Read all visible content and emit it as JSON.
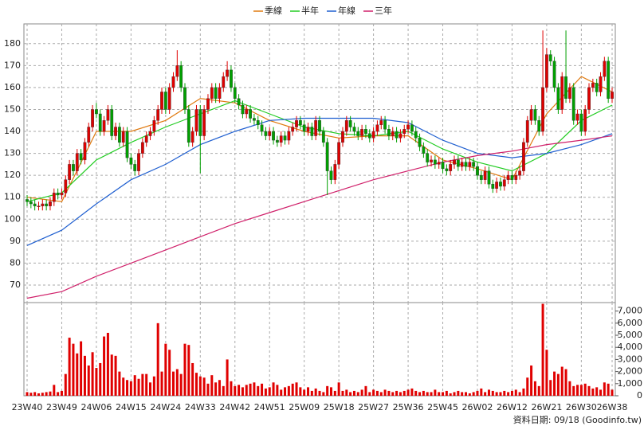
{
  "chart_data": {
    "type": "candlestick",
    "categories": [
      "23W40",
      null,
      null,
      null,
      null,
      null,
      null,
      null,
      null,
      "23W49",
      null,
      null,
      null,
      null,
      null,
      null,
      null,
      null,
      "24W06",
      null,
      null,
      null,
      null,
      null,
      null,
      null,
      null,
      "24W15",
      null,
      null,
      null,
      null,
      null,
      null,
      null,
      null,
      "24W24",
      null,
      null,
      null,
      null,
      null,
      null,
      null,
      null,
      "24W33",
      null,
      null,
      null,
      null,
      null,
      null,
      null,
      null,
      "24W42",
      null,
      null,
      null,
      null,
      null,
      null,
      null,
      null,
      "24W51",
      null,
      null,
      null,
      null,
      null,
      null,
      null,
      null,
      "25W09",
      null,
      null,
      null,
      null,
      null,
      null,
      null,
      null,
      "25W18",
      null,
      null,
      null,
      null,
      null,
      null,
      null,
      null,
      "25W27",
      null,
      null,
      null,
      null,
      null,
      null,
      null,
      null,
      "25W36",
      null,
      null,
      null,
      null,
      null,
      null,
      null,
      null,
      "25W45",
      null,
      null,
      null,
      null,
      null,
      null,
      null,
      null,
      "26W02",
      null,
      null,
      null,
      null,
      null,
      null,
      null,
      null,
      "26W12",
      null,
      null,
      null,
      null,
      null,
      null,
      null,
      null,
      "26W21",
      null,
      null,
      null,
      null,
      null,
      null,
      null,
      null,
      "26W30",
      null,
      null,
      null,
      null,
      null,
      null,
      null,
      "26W38"
    ],
    "open": [
      109,
      108,
      107,
      106,
      106,
      107,
      106,
      108,
      112,
      111,
      112,
      118,
      125,
      122,
      130,
      127,
      135,
      142,
      150,
      148,
      140,
      145,
      150,
      138,
      142,
      135,
      140,
      128,
      125,
      122,
      130,
      135,
      138,
      140,
      145,
      150,
      158,
      150,
      160,
      165,
      170,
      160,
      150,
      135,
      140,
      150,
      138,
      150,
      155,
      160,
      155,
      160,
      165,
      168,
      160,
      155,
      152,
      148,
      150,
      146,
      145,
      143,
      140,
      138,
      140,
      136,
      135,
      138,
      136,
      140,
      142,
      145,
      143,
      140,
      142,
      138,
      145,
      140,
      135,
      122,
      118,
      125,
      135,
      140,
      145,
      142,
      140,
      138,
      141,
      139,
      137,
      140,
      143,
      145,
      141,
      138,
      140,
      137,
      139,
      141,
      143,
      140,
      137,
      133,
      130,
      126,
      127,
      125,
      126,
      123,
      122,
      125,
      127,
      124,
      126,
      124,
      126,
      124,
      120,
      118,
      122,
      116,
      114,
      117,
      115,
      118,
      120,
      118,
      120,
      122,
      135,
      145,
      150,
      145,
      140,
      160,
      175,
      172,
      160,
      150,
      165,
      155,
      160,
      145,
      148,
      140,
      150,
      160,
      162,
      158,
      165,
      172,
      155
    ],
    "high": [
      111,
      110,
      109,
      108,
      109,
      109,
      110,
      114,
      114,
      114,
      120,
      127,
      127,
      132,
      132,
      137,
      144,
      152,
      153,
      150,
      147,
      152,
      152,
      144,
      144,
      142,
      142,
      130,
      127,
      132,
      137,
      140,
      142,
      147,
      152,
      160,
      160,
      162,
      167,
      177,
      172,
      162,
      152,
      142,
      152,
      152,
      152,
      157,
      162,
      162,
      162,
      167,
      172,
      170,
      162,
      157,
      154,
      152,
      152,
      148,
      147,
      145,
      142,
      142,
      142,
      138,
      140,
      140,
      142,
      144,
      147,
      147,
      145,
      144,
      144,
      147,
      147,
      142,
      137,
      124,
      127,
      137,
      142,
      147,
      147,
      144,
      142,
      143,
      143,
      141,
      142,
      145,
      147,
      147,
      143,
      142,
      142,
      141,
      143,
      145,
      145,
      142,
      139,
      135,
      132,
      129,
      129,
      128,
      128,
      125,
      127,
      129,
      129,
      128,
      128,
      128,
      128,
      126,
      122,
      124,
      124,
      118,
      119,
      119,
      120,
      122,
      122,
      122,
      124,
      137,
      147,
      152,
      152,
      147,
      186,
      178,
      177,
      174,
      162,
      167,
      186,
      162,
      162,
      150,
      150,
      152,
      162,
      164,
      164,
      167,
      174,
      174,
      160
    ],
    "low": [
      106,
      105,
      104,
      104,
      104,
      104,
      104,
      106,
      109,
      109,
      110,
      116,
      120,
      120,
      125,
      125,
      133,
      140,
      146,
      138,
      138,
      143,
      136,
      136,
      133,
      133,
      126,
      123,
      120,
      120,
      128,
      133,
      136,
      138,
      143,
      148,
      148,
      148,
      158,
      163,
      158,
      148,
      133,
      133,
      138,
      121,
      136,
      148,
      153,
      153,
      153,
      158,
      163,
      158,
      153,
      150,
      146,
      146,
      144,
      143,
      141,
      138,
      136,
      136,
      134,
      133,
      133,
      134,
      134,
      138,
      140,
      141,
      138,
      138,
      136,
      136,
      138,
      133,
      111,
      116,
      116,
      123,
      133,
      138,
      140,
      138,
      136,
      136,
      137,
      135,
      135,
      138,
      141,
      139,
      136,
      136,
      135,
      135,
      137,
      139,
      138,
      135,
      131,
      128,
      124,
      124,
      123,
      123,
      121,
      120,
      120,
      123,
      122,
      122,
      122,
      122,
      122,
      118,
      116,
      116,
      114,
      112,
      112,
      113,
      113,
      116,
      116,
      116,
      118,
      120,
      133,
      143,
      143,
      138,
      138,
      158,
      170,
      158,
      148,
      148,
      153,
      153,
      143,
      143,
      138,
      138,
      148,
      158,
      156,
      156,
      163,
      153,
      153
    ],
    "close": [
      108,
      107,
      106,
      106,
      107,
      106,
      108,
      112,
      111,
      112,
      118,
      125,
      122,
      130,
      127,
      135,
      142,
      150,
      148,
      140,
      145,
      150,
      138,
      142,
      135,
      140,
      128,
      125,
      122,
      130,
      135,
      138,
      140,
      145,
      150,
      158,
      150,
      160,
      165,
      170,
      160,
      150,
      135,
      140,
      150,
      138,
      150,
      155,
      160,
      155,
      160,
      165,
      168,
      160,
      155,
      152,
      148,
      150,
      146,
      145,
      143,
      140,
      138,
      140,
      136,
      135,
      138,
      136,
      140,
      142,
      145,
      143,
      140,
      142,
      138,
      145,
      140,
      135,
      122,
      118,
      125,
      135,
      140,
      145,
      142,
      140,
      138,
      141,
      139,
      137,
      140,
      143,
      145,
      141,
      138,
      140,
      137,
      139,
      141,
      143,
      140,
      137,
      133,
      130,
      126,
      127,
      125,
      126,
      123,
      122,
      125,
      127,
      124,
      126,
      124,
      126,
      124,
      120,
      118,
      122,
      116,
      114,
      117,
      115,
      118,
      120,
      118,
      120,
      122,
      135,
      145,
      150,
      145,
      140,
      160,
      175,
      172,
      160,
      150,
      165,
      155,
      160,
      145,
      148,
      140,
      150,
      160,
      162,
      158,
      165,
      172,
      155,
      158
    ],
    "up_color": "#e00000",
    "down_color": "#00a000",
    "ylim": [
      62,
      189
    ],
    "yticks": [
      70,
      80,
      90,
      100,
      110,
      120,
      130,
      140,
      150,
      160,
      170,
      180
    ],
    "grid": true,
    "series": [
      {
        "name": "季線",
        "color": "#e07a10",
        "x": [
          "23W40",
          "23W49",
          "24W06",
          "24W15",
          "24W24",
          "24W33",
          "24W42",
          "24W51",
          "25W09",
          "25W18",
          "25W27",
          "25W36",
          "25W45",
          "26W02",
          "26W12",
          "26W21",
          "26W30",
          "26W38"
        ],
        "values": [
          110,
          108,
          140,
          140,
          145,
          155,
          153,
          145,
          140,
          137,
          138,
          138,
          127,
          123,
          118,
          148,
          165,
          158
        ]
      },
      {
        "name": "半年",
        "color": "#22cc22",
        "x": [
          "23W40",
          "23W49",
          "24W06",
          "24W15",
          "24W24",
          "24W33",
          "24W42",
          "24W51",
          "25W09",
          "25W18",
          "25W27",
          "25W36",
          "25W45",
          "26W02",
          "26W12",
          "26W21",
          "26W30",
          "26W38"
        ],
        "values": [
          108,
          112,
          127,
          135,
          142,
          148,
          154,
          148,
          142,
          139,
          138,
          140,
          132,
          126,
          122,
          130,
          145,
          152
        ]
      },
      {
        "name": "年線",
        "color": "#1f5fd0",
        "x": [
          "23W40",
          "23W49",
          "24W06",
          "24W15",
          "24W24",
          "24W33",
          "24W42",
          "24W51",
          "25W09",
          "25W18",
          "25W27",
          "25W36",
          "25W45",
          "26W02",
          "26W12",
          "26W21",
          "26W30",
          "26W38"
        ],
        "values": [
          88,
          95,
          107,
          118,
          125,
          134,
          140,
          145,
          146,
          146,
          146,
          144,
          136,
          130,
          128,
          130,
          134,
          139
        ]
      },
      {
        "name": "三年",
        "color": "#d0206a",
        "x": [
          "23W40",
          "23W49",
          "24W06",
          "24W15",
          "24W24",
          "24W33",
          "24W42",
          "24W51",
          "25W09",
          "25W18",
          "25W27",
          "25W36",
          "25W45",
          "26W02",
          "26W12",
          "26W21",
          "26W30",
          "26W38"
        ],
        "values": [
          64,
          67,
          74,
          80,
          86,
          92,
          98,
          103,
          108,
          113,
          118,
          122,
          126,
          129,
          131,
          134,
          136,
          138
        ]
      }
    ],
    "volume": {
      "color": "#e00000",
      "values": [
        300,
        250,
        300,
        200,
        250,
        300,
        350,
        900,
        300,
        400,
        1800,
        4800,
        4300,
        3500,
        4500,
        3300,
        2500,
        3600,
        2300,
        2700,
        4900,
        5200,
        3400,
        3300,
        2000,
        1500,
        1300,
        1200,
        1700,
        1400,
        1800,
        1800,
        1100,
        1600,
        6000,
        2000,
        4300,
        3800,
        2000,
        2200,
        1800,
        4300,
        4200,
        2700,
        1900,
        1600,
        1500,
        1000,
        1700,
        1100,
        1300,
        800,
        3000,
        1200,
        800,
        900,
        700,
        900,
        1000,
        1100,
        800,
        1000,
        600,
        700,
        1100,
        900,
        500,
        700,
        800,
        1000,
        1100,
        700,
        500,
        700,
        400,
        600,
        400,
        300,
        800,
        700,
        400,
        1100,
        400,
        500,
        300,
        400,
        300,
        500,
        800,
        300,
        500,
        400,
        300,
        500,
        400,
        300,
        400,
        300,
        400,
        500,
        600,
        400,
        300,
        400,
        300,
        300,
        500,
        300,
        300,
        400,
        200,
        300,
        400,
        300,
        300,
        200,
        300,
        400,
        600,
        300,
        500,
        400,
        300,
        300,
        400,
        300,
        400,
        500,
        300,
        600,
        1500,
        2500,
        1200,
        800,
        7600,
        3800,
        1300,
        2000,
        1800,
        2400,
        2200,
        1200,
        800,
        900,
        900,
        1000,
        800,
        600,
        700,
        500,
        1100,
        1000,
        500
      ],
      "ylim": [
        0,
        7700
      ],
      "yticks": [
        0,
        {
          "value": 1000,
          "label": "1,000"
        },
        {
          "value": 2000,
          "label": "2,000"
        },
        {
          "value": 3000,
          "label": "3,000"
        },
        {
          "value": 4000,
          "label": "4,000"
        },
        {
          "value": 5000,
          "label": "5,000"
        },
        {
          "value": 6000,
          "label": "6,000"
        },
        {
          "value": 7000,
          "label": "7,000"
        }
      ]
    },
    "footnote": "資料日期: 09/18 (Goodinfo.tw)"
  }
}
